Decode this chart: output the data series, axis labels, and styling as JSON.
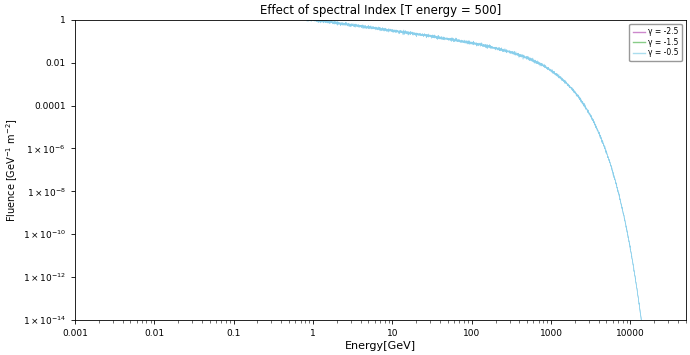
{
  "title": "Effect of spectral Index [T energy = 500]",
  "xlabel": "Energy[GeV]",
  "ylabel": "Fluence [GeV$^{-1}$ m$^{-2}$]",
  "xlim": [
    0.001,
    50000
  ],
  "ylim": [
    1e-14,
    1
  ],
  "background_color": "#ffffff",
  "legend": [
    {
      "label": "γ = -2.5",
      "color": "#88bbdd"
    },
    {
      "label": "γ = -1.5",
      "color": "#88ccdd"
    },
    {
      "label": "γ = -0.5",
      "color": "#aaddee"
    }
  ],
  "line_color": "#87ceeb",
  "seed": 42,
  "n_points": 3000,
  "T_energy": 500,
  "gammas": [
    -2.5,
    -1.5,
    -0.5
  ],
  "E_min": 0.001,
  "E_max": 50000,
  "noise_scale": 0.08
}
